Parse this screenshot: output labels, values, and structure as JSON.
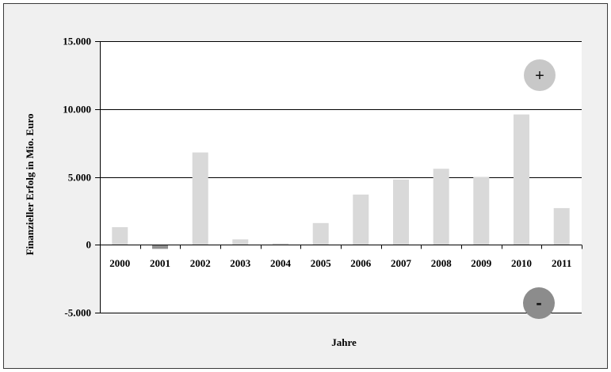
{
  "chart_data": {
    "type": "bar",
    "categories": [
      "2000",
      "2001",
      "2002",
      "2003",
      "2004",
      "2005",
      "2006",
      "2007",
      "2008",
      "2009",
      "2010",
      "2011"
    ],
    "values": [
      1300,
      -300,
      6800,
      400,
      100,
      1600,
      3700,
      4800,
      5600,
      5000,
      9600,
      2700
    ],
    "xlabel": "Jahre",
    "ylabel": "Finanzieller Erfolg in Mio. Euro",
    "ylim": [
      -5000,
      15000
    ],
    "yticks": [
      15000,
      10000,
      5000,
      0,
      -5000
    ],
    "ytick_labels": [
      "15.000",
      "10.000",
      "5.000",
      "0",
      "-5.000"
    ],
    "grid": true,
    "annotations": [
      {
        "text": "+"
      },
      {
        "text": "-"
      }
    ]
  },
  "colors": {
    "chart_background": "#f0f0f0",
    "plot_background": "#ffffff",
    "bar_positive": "#d9d9d9",
    "bar_negative": "#8f8f8f",
    "gridline": "#000000",
    "plus_marker": "#c8c8c8",
    "minus_marker": "#8c8c8c"
  }
}
